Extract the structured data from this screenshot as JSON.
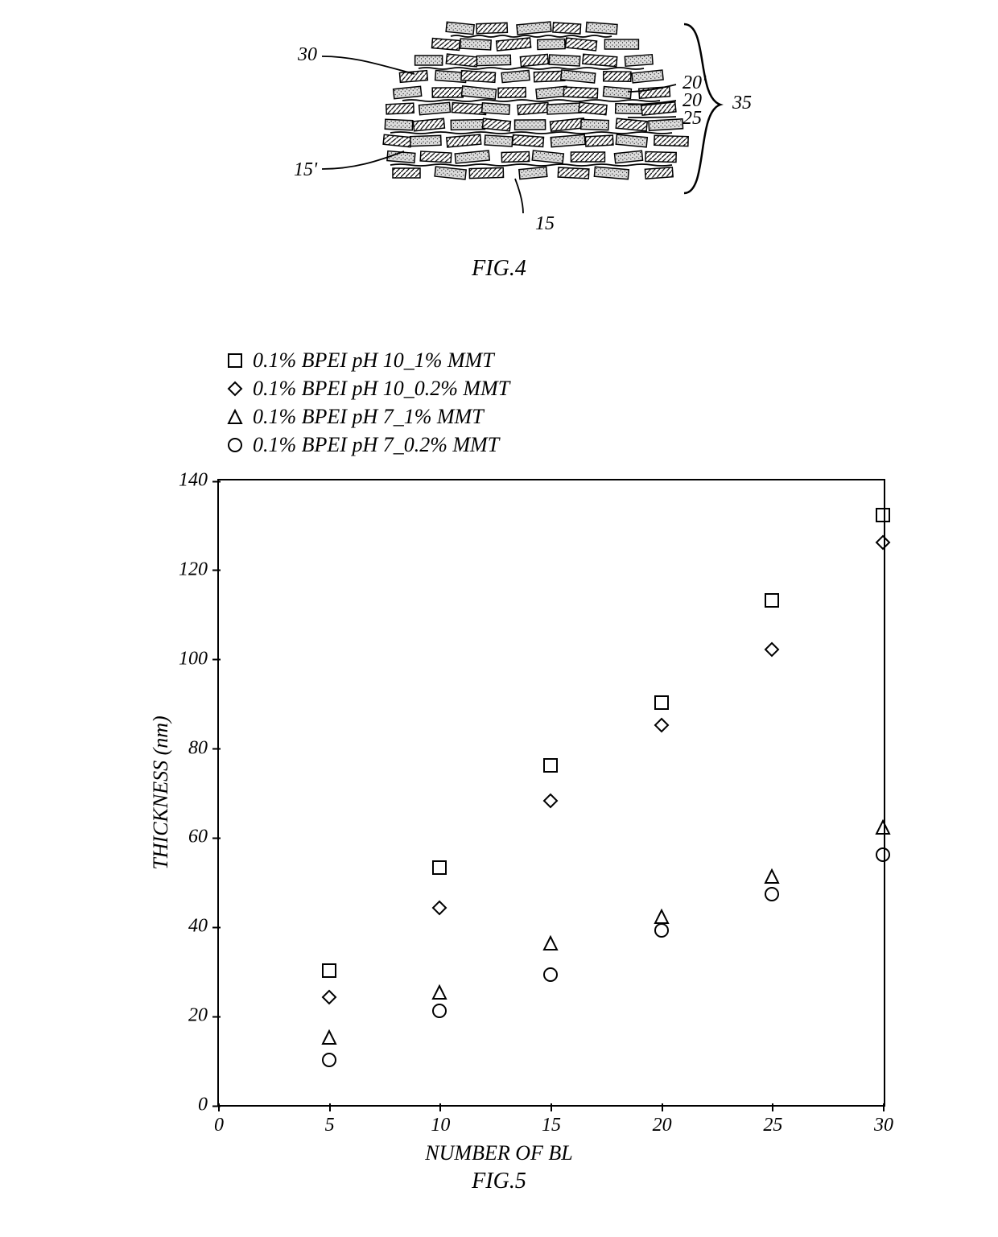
{
  "fig4": {
    "caption": "FIG.4",
    "annotations": [
      "30",
      "15'",
      "15",
      "35",
      "20'",
      "20",
      "25"
    ],
    "platelet_hatched_fill": "#ffffff",
    "platelet_speckle_fill": "#cccccc",
    "stroke": "#000000"
  },
  "fig5": {
    "caption": "FIG.5",
    "ylabel": "THICKNESS (nm)",
    "xlabel": "NUMBER OF BL",
    "xlim": [
      0,
      30
    ],
    "ylim": [
      0,
      140
    ],
    "xticks": [
      0,
      5,
      10,
      15,
      20,
      25,
      30
    ],
    "yticks": [
      0,
      20,
      40,
      60,
      80,
      100,
      120,
      140
    ],
    "background_color": "#ffffff",
    "border_color": "#000000",
    "marker_size": 18,
    "marker_stroke": "#000000",
    "marker_stroke_width": 2,
    "label_fontsize": 26,
    "legend": [
      {
        "marker": "square",
        "label": "0.1% BPEI pH 10_1% MMT"
      },
      {
        "marker": "diamond",
        "label": "0.1% BPEI pH 10_0.2% MMT"
      },
      {
        "marker": "triangle",
        "label": "0.1% BPEI pH 7_1% MMT"
      },
      {
        "marker": "circle",
        "label": "0.1% BPEI pH 7_0.2% MMT"
      }
    ],
    "series": [
      {
        "marker": "square",
        "x": [
          5,
          10,
          15,
          20,
          25,
          30
        ],
        "y": [
          30,
          53,
          76,
          90,
          113,
          132
        ]
      },
      {
        "marker": "diamond",
        "x": [
          5,
          10,
          15,
          20,
          25,
          30
        ],
        "y": [
          24,
          44,
          68,
          85,
          102,
          126
        ]
      },
      {
        "marker": "triangle",
        "x": [
          5,
          10,
          15,
          20,
          25,
          30
        ],
        "y": [
          15,
          25,
          36,
          42,
          51,
          62
        ]
      },
      {
        "marker": "circle",
        "x": [
          5,
          10,
          15,
          20,
          25,
          30
        ],
        "y": [
          10,
          21,
          29,
          39,
          47,
          56
        ]
      }
    ]
  }
}
